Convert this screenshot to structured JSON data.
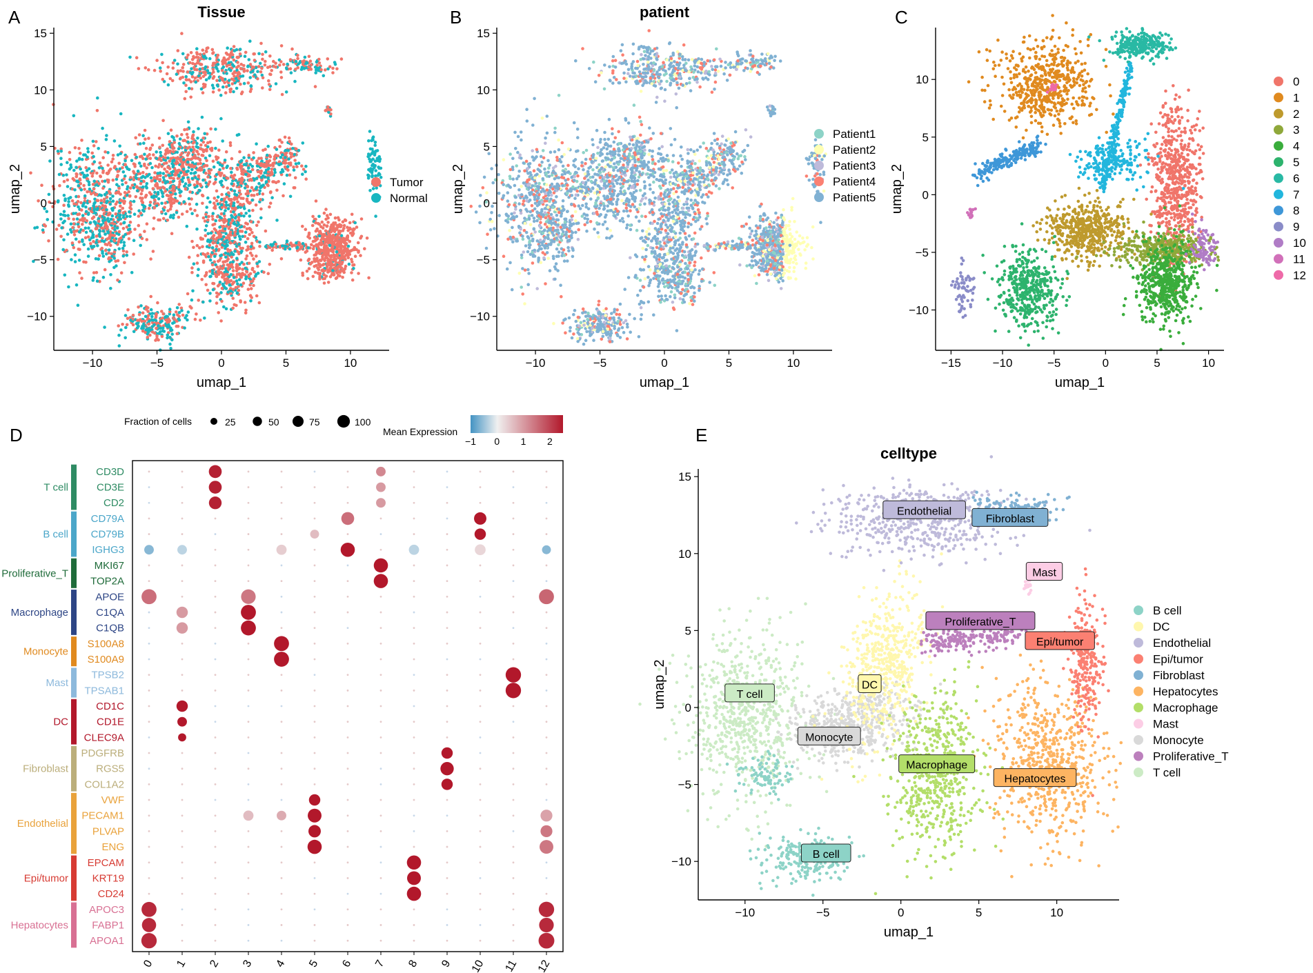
{
  "panels": {
    "A": {
      "letter": "A",
      "chart_data": {
        "type": "scatter",
        "title": "Tissue",
        "xlabel": "umap_1",
        "ylabel": "umap_2",
        "xlim": [
          -13,
          13
        ],
        "ylim": [
          -13,
          15.5
        ],
        "xticks": [
          -10,
          -5,
          0,
          5,
          10
        ],
        "yticks": [
          -10,
          -5,
          0,
          5,
          10,
          15
        ],
        "legend": "right",
        "series": [
          {
            "name": "Tumor",
            "color": "#F0756A"
          },
          {
            "name": "Normal",
            "color": "#18B6C0"
          }
        ]
      }
    },
    "B": {
      "letter": "B",
      "chart_data": {
        "type": "scatter",
        "title": "patient",
        "xlabel": "umap_1",
        "ylabel": "umap_2",
        "xlim": [
          -13,
          13
        ],
        "ylim": [
          -13,
          15.5
        ],
        "xticks": [
          -10,
          -5,
          0,
          5,
          10
        ],
        "yticks": [
          -10,
          -5,
          0,
          5,
          10,
          15
        ],
        "legend": "right",
        "series": [
          {
            "name": "Patient1",
            "color": "#8DD3C7"
          },
          {
            "name": "Patient2",
            "color": "#FFFFB3"
          },
          {
            "name": "Patient3",
            "color": "#BEBADA"
          },
          {
            "name": "Patient4",
            "color": "#FB8072"
          },
          {
            "name": "Patient5",
            "color": "#80B1D3"
          }
        ]
      }
    },
    "C": {
      "letter": "C",
      "chart_data": {
        "type": "scatter",
        "title": "",
        "xlabel": "umap_1",
        "ylabel": "umap_2",
        "xlim": [
          -16.5,
          11.5
        ],
        "ylim": [
          -13.5,
          14.5
        ],
        "xticks": [
          -15,
          -10,
          -5,
          0,
          5,
          10
        ],
        "yticks": [
          -10,
          -5,
          0,
          5,
          10
        ],
        "legend": "right",
        "series": [
          {
            "name": "0",
            "color": "#F0756A"
          },
          {
            "name": "1",
            "color": "#E08A1F"
          },
          {
            "name": "2",
            "color": "#BE9A2D"
          },
          {
            "name": "3",
            "color": "#8FA83A"
          },
          {
            "name": "4",
            "color": "#3AAD3C"
          },
          {
            "name": "5",
            "color": "#2DB36D"
          },
          {
            "name": "6",
            "color": "#29B9A4"
          },
          {
            "name": "7",
            "color": "#22B6DD"
          },
          {
            "name": "8",
            "color": "#3E97D8"
          },
          {
            "name": "9",
            "color": "#8A8CC8"
          },
          {
            "name": "10",
            "color": "#B07CC6"
          },
          {
            "name": "11",
            "color": "#D170B9"
          },
          {
            "name": "12",
            "color": "#EE6AA8"
          }
        ]
      }
    },
    "D": {
      "letter": "D",
      "chart_data": {
        "type": "dotplot",
        "size_legend_title": "Fraction of cells",
        "size_legend": [
          25,
          50,
          75,
          100
        ],
        "color_legend_title": "Mean Expression",
        "color_ticks": [
          -1,
          0,
          1,
          2
        ],
        "color_range": [
          -1,
          2.5
        ],
        "clusters": [
          "0",
          "1",
          "2",
          "3",
          "4",
          "5",
          "6",
          "7",
          "8",
          "9",
          "10",
          "11",
          "12"
        ],
        "groups": [
          {
            "name": "T cell",
            "color": "#2E8B63",
            "genes": [
              "CD3D",
              "CD3E",
              "CD2"
            ]
          },
          {
            "name": "B cell",
            "color": "#4BA6C9",
            "genes": [
              "CD79A",
              "CD79B",
              "IGHG3"
            ]
          },
          {
            "name": "Proliferative_T",
            "color": "#1F6B3A",
            "genes": [
              "MKI67",
              "TOP2A"
            ]
          },
          {
            "name": "Macrophage",
            "color": "#2D4585",
            "genes": [
              "APOE",
              "C1QA",
              "C1QB"
            ]
          },
          {
            "name": "Monocyte",
            "color": "#E08A1F",
            "genes": [
              "S100A8",
              "S100A9"
            ]
          },
          {
            "name": "Mast",
            "color": "#8DB9DC",
            "genes": [
              "TPSB2",
              "TPSAB1"
            ]
          },
          {
            "name": "DC",
            "color": "#B2182B",
            "genes": [
              "CD1C",
              "CD1E",
              "CLEC9A"
            ]
          },
          {
            "name": "Fibroblast",
            "color": "#BBAE7B",
            "genes": [
              "PDGFRB",
              "RGS5",
              "COL1A2"
            ]
          },
          {
            "name": "Endothelial",
            "color": "#E9A23B",
            "genes": [
              "VWF",
              "PECAM1",
              "PLVAP",
              "ENG"
            ]
          },
          {
            "name": "Epi/tumor",
            "color": "#D73B33",
            "genes": [
              "EPCAM",
              "KRT19",
              "CD24"
            ]
          },
          {
            "name": "Hepatocytes",
            "color": "#D87093",
            "genes": [
              "APOC3",
              "FABP1",
              "APOA1"
            ]
          }
        ],
        "points": [
          {
            "gene": "CD3D",
            "cluster": "2",
            "frac": 60,
            "expr": 2.4
          },
          {
            "gene": "CD3E",
            "cluster": "2",
            "frac": 60,
            "expr": 2.4
          },
          {
            "gene": "CD2",
            "cluster": "2",
            "frac": 58,
            "expr": 2.4
          },
          {
            "gene": "CD3D",
            "cluster": "7",
            "frac": 30,
            "expr": 1.2
          },
          {
            "gene": "CD3E",
            "cluster": "7",
            "frac": 30,
            "expr": 1.0
          },
          {
            "gene": "CD2",
            "cluster": "7",
            "frac": 30,
            "expr": 1.0
          },
          {
            "gene": "CD79A",
            "cluster": "6",
            "frac": 60,
            "expr": 1.5
          },
          {
            "gene": "CD79A",
            "cluster": "10",
            "frac": 55,
            "expr": 2.5
          },
          {
            "gene": "CD79B",
            "cluster": "10",
            "frac": 45,
            "expr": 2.5
          },
          {
            "gene": "CD79B",
            "cluster": "5",
            "frac": 25,
            "expr": 0.6
          },
          {
            "gene": "IGHG3",
            "cluster": "6",
            "frac": 75,
            "expr": 2.5
          },
          {
            "gene": "IGHG3",
            "cluster": "0",
            "frac": 30,
            "expr": -0.6
          },
          {
            "gene": "IGHG3",
            "cluster": "1",
            "frac": 30,
            "expr": -0.3
          },
          {
            "gene": "IGHG3",
            "cluster": "4",
            "frac": 35,
            "expr": 0.4
          },
          {
            "gene": "IGHG3",
            "cluster": "8",
            "frac": 35,
            "expr": -0.3
          },
          {
            "gene": "IGHG3",
            "cluster": "10",
            "frac": 40,
            "expr": 0.3
          },
          {
            "gene": "IGHG3",
            "cluster": "12",
            "frac": 25,
            "expr": -0.6
          },
          {
            "gene": "MKI67",
            "cluster": "7",
            "frac": 75,
            "expr": 2.5
          },
          {
            "gene": "TOP2A",
            "cluster": "7",
            "frac": 75,
            "expr": 2.5
          },
          {
            "gene": "APOE",
            "cluster": "0",
            "frac": 85,
            "expr": 1.5
          },
          {
            "gene": "APOE",
            "cluster": "3",
            "frac": 80,
            "expr": 1.4
          },
          {
            "gene": "APOE",
            "cluster": "12",
            "frac": 85,
            "expr": 1.6
          },
          {
            "gene": "C1QA",
            "cluster": "3",
            "frac": 85,
            "expr": 2.5
          },
          {
            "gene": "C1QA",
            "cluster": "1",
            "frac": 45,
            "expr": 1.0
          },
          {
            "gene": "C1QB",
            "cluster": "3",
            "frac": 85,
            "expr": 2.5
          },
          {
            "gene": "C1QB",
            "cluster": "1",
            "frac": 45,
            "expr": 1.0
          },
          {
            "gene": "S100A8",
            "cluster": "4",
            "frac": 85,
            "expr": 2.5
          },
          {
            "gene": "S100A9",
            "cluster": "4",
            "frac": 85,
            "expr": 2.5
          },
          {
            "gene": "TPSB2",
            "cluster": "11",
            "frac": 90,
            "expr": 2.5
          },
          {
            "gene": "TPSAB1",
            "cluster": "11",
            "frac": 90,
            "expr": 2.5
          },
          {
            "gene": "CD1C",
            "cluster": "1",
            "frac": 45,
            "expr": 2.5
          },
          {
            "gene": "CD1E",
            "cluster": "1",
            "frac": 30,
            "expr": 2.5
          },
          {
            "gene": "CLEC9A",
            "cluster": "1",
            "frac": 20,
            "expr": 2.5
          },
          {
            "gene": "PDGFRB",
            "cluster": "9",
            "frac": 45,
            "expr": 2.5
          },
          {
            "gene": "RGS5",
            "cluster": "9",
            "frac": 65,
            "expr": 2.5
          },
          {
            "gene": "COL1A2",
            "cluster": "9",
            "frac": 45,
            "expr": 2.5
          },
          {
            "gene": "VWF",
            "cluster": "5",
            "frac": 45,
            "expr": 2.5
          },
          {
            "gene": "PECAM1",
            "cluster": "5",
            "frac": 70,
            "expr": 2.5
          },
          {
            "gene": "PECAM1",
            "cluster": "3",
            "frac": 35,
            "expr": 0.6
          },
          {
            "gene": "PECAM1",
            "cluster": "4",
            "frac": 30,
            "expr": 0.8
          },
          {
            "gene": "PECAM1",
            "cluster": "12",
            "frac": 50,
            "expr": 0.9
          },
          {
            "gene": "PLVAP",
            "cluster": "5",
            "frac": 55,
            "expr": 2.5
          },
          {
            "gene": "PLVAP",
            "cluster": "12",
            "frac": 50,
            "expr": 1.4
          },
          {
            "gene": "ENG",
            "cluster": "5",
            "frac": 75,
            "expr": 2.5
          },
          {
            "gene": "ENG",
            "cluster": "12",
            "frac": 70,
            "expr": 1.4
          },
          {
            "gene": "EPCAM",
            "cluster": "8",
            "frac": 75,
            "expr": 2.5
          },
          {
            "gene": "KRT19",
            "cluster": "8",
            "frac": 70,
            "expr": 2.5
          },
          {
            "gene": "CD24",
            "cluster": "8",
            "frac": 75,
            "expr": 2.5
          },
          {
            "gene": "APOC3",
            "cluster": "0",
            "frac": 85,
            "expr": 2.3
          },
          {
            "gene": "APOC3",
            "cluster": "12",
            "frac": 90,
            "expr": 2.3
          },
          {
            "gene": "FABP1",
            "cluster": "0",
            "frac": 75,
            "expr": 2.3
          },
          {
            "gene": "FABP1",
            "cluster": "12",
            "frac": 80,
            "expr": 2.3
          },
          {
            "gene": "APOA1",
            "cluster": "0",
            "frac": 90,
            "expr": 2.3
          },
          {
            "gene": "APOA1",
            "cluster": "12",
            "frac": 95,
            "expr": 2.3
          }
        ]
      }
    },
    "E": {
      "letter": "E",
      "chart_data": {
        "type": "scatter",
        "title": "celltype",
        "xlabel": "umap_1",
        "ylabel": "umap_2",
        "xlim": [
          -13,
          14
        ],
        "ylim": [
          -12.5,
          15.5
        ],
        "xticks": [
          -10,
          -5,
          0,
          5,
          10
        ],
        "yticks": [
          -10,
          -5,
          0,
          5,
          10,
          15
        ],
        "legend": "right",
        "series": [
          {
            "name": "B cell",
            "color": "#8DD3C7",
            "label_at": [
              -4.8,
              -9.5
            ]
          },
          {
            "name": "DC",
            "color": "#FFF7AE",
            "label_at": [
              -2,
              1.5
            ]
          },
          {
            "name": "Endothelial",
            "color": "#BEBADA",
            "label_at": [
              1.5,
              12.8
            ]
          },
          {
            "name": "Epi/tumor",
            "color": "#FB8072",
            "label_at": [
              10.2,
              4.3
            ]
          },
          {
            "name": "Fibroblast",
            "color": "#80B1D3",
            "label_at": [
              7,
              12.3
            ]
          },
          {
            "name": "Hepatocytes",
            "color": "#FDB462",
            "label_at": [
              8.6,
              -4.6
            ]
          },
          {
            "name": "Macrophage",
            "color": "#B3DE69",
            "label_at": [
              2.3,
              -3.7
            ]
          },
          {
            "name": "Mast",
            "color": "#FCCDE5",
            "label_at": [
              9.2,
              8.8
            ]
          },
          {
            "name": "Monocyte",
            "color": "#D9D9D9",
            "label_at": [
              -4.6,
              -1.9
            ]
          },
          {
            "name": "Proliferative_T",
            "color": "#BC80BD",
            "label_at": [
              5.1,
              5.6
            ]
          },
          {
            "name": "T cell",
            "color": "#CCEBC5",
            "label_at": [
              -9.7,
              0.9
            ]
          }
        ]
      }
    }
  }
}
